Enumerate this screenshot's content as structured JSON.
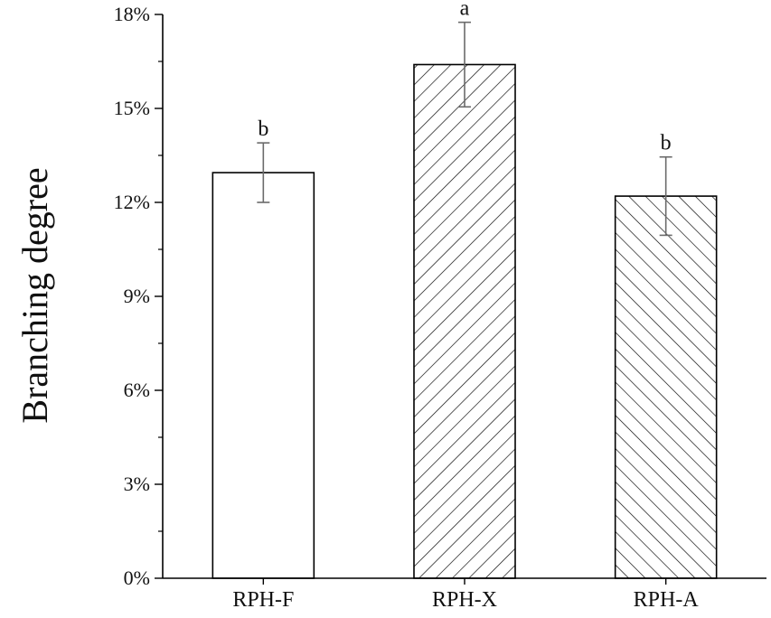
{
  "chart_data": {
    "type": "bar",
    "title": "",
    "xlabel": "",
    "ylabel": "Branching degree",
    "ylim": [
      0,
      18
    ],
    "yticks": [
      0,
      3,
      6,
      9,
      12,
      15,
      18
    ],
    "ytick_labels": [
      "0%",
      "3%",
      "6%",
      "9%",
      "12%",
      "15%",
      "18%"
    ],
    "categories": [
      "RPH-F",
      "RPH-X",
      "RPH-A"
    ],
    "values": [
      12.95,
      16.4,
      12.2
    ],
    "errors": [
      0.95,
      1.35,
      1.25
    ],
    "significance_letters": [
      "b",
      "a",
      "b"
    ],
    "fills": [
      "none",
      "hatch-diagonal",
      "hatch-backdiagonal"
    ],
    "grid": false,
    "legend": "none",
    "bar_edge_color": "#000000",
    "error_bar_color": "#6b6b6b"
  }
}
